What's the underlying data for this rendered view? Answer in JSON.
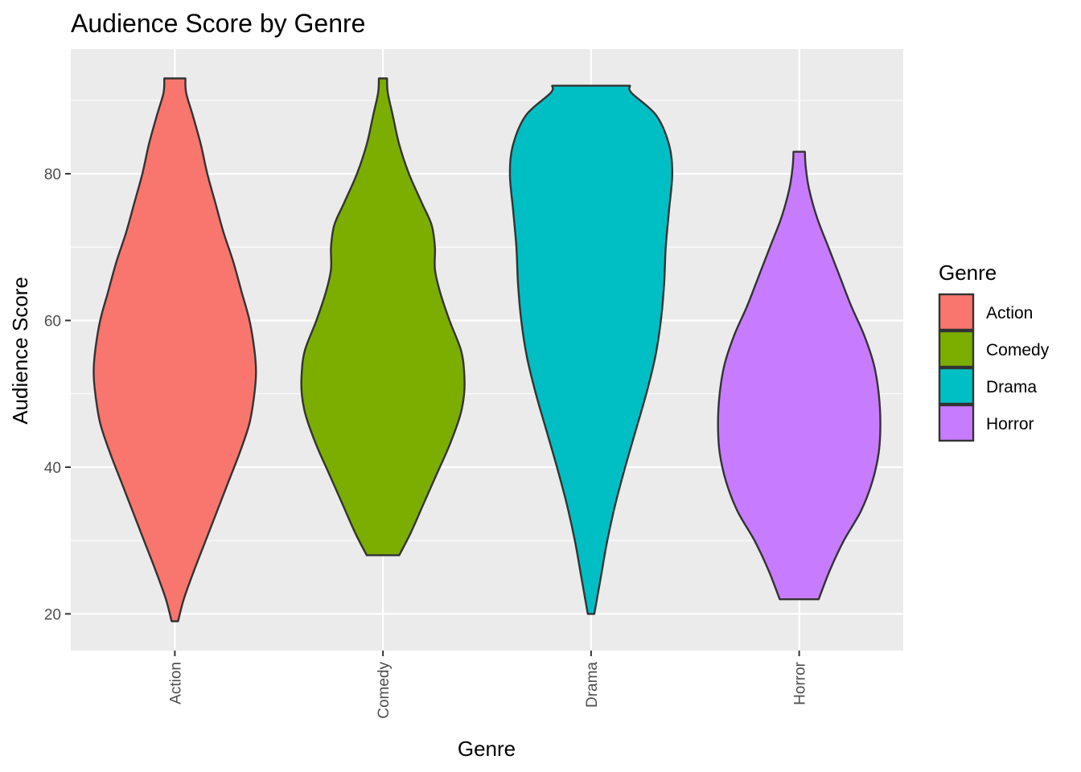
{
  "chart_data": {
    "type": "violin",
    "title": "Audience Score by Genre",
    "xlabel": "Genre",
    "ylabel": "Audience Score",
    "categories": [
      "Action",
      "Comedy",
      "Drama",
      "Horror"
    ],
    "y_ticks": [
      20,
      40,
      60,
      80
    ],
    "ylim": [
      15,
      97
    ],
    "grid": true,
    "legend": {
      "title": "Genre",
      "placement": "right",
      "entries": [
        "Action",
        "Comedy",
        "Drama",
        "Horror"
      ]
    },
    "colors": {
      "Action": "#F8766D",
      "Comedy": "#7CAE00",
      "Drama": "#00BFC4",
      "Horror": "#C77CFF",
      "panel_background": "#EBEBEB",
      "grid": "#FFFFFF",
      "outline": "#333333"
    },
    "series": [
      {
        "name": "Action",
        "min": 19,
        "max": 93,
        "density_profile": [
          [
            19,
            0.04
          ],
          [
            22,
            0.11
          ],
          [
            26,
            0.24
          ],
          [
            30,
            0.38
          ],
          [
            34,
            0.52
          ],
          [
            38,
            0.66
          ],
          [
            42,
            0.8
          ],
          [
            46,
            0.92
          ],
          [
            50,
            0.98
          ],
          [
            53,
            1.0
          ],
          [
            56,
            0.98
          ],
          [
            60,
            0.92
          ],
          [
            64,
            0.82
          ],
          [
            68,
            0.72
          ],
          [
            72,
            0.6
          ],
          [
            76,
            0.5
          ],
          [
            80,
            0.4
          ],
          [
            84,
            0.32
          ],
          [
            88,
            0.22
          ],
          [
            91,
            0.14
          ],
          [
            93,
            0.13
          ]
        ]
      },
      {
        "name": "Comedy",
        "min": 28,
        "max": 93,
        "density_profile": [
          [
            28,
            0.2
          ],
          [
            31,
            0.34
          ],
          [
            35,
            0.5
          ],
          [
            39,
            0.66
          ],
          [
            43,
            0.82
          ],
          [
            47,
            0.95
          ],
          [
            50,
            1.0
          ],
          [
            53,
            1.0
          ],
          [
            56,
            0.96
          ],
          [
            60,
            0.82
          ],
          [
            64,
            0.7
          ],
          [
            67,
            0.64
          ],
          [
            70,
            0.64
          ],
          [
            73,
            0.6
          ],
          [
            76,
            0.48
          ],
          [
            80,
            0.32
          ],
          [
            84,
            0.2
          ],
          [
            88,
            0.12
          ],
          [
            91,
            0.06
          ],
          [
            93,
            0.05
          ]
        ]
      },
      {
        "name": "Drama",
        "min": 20,
        "max": 92,
        "density_profile": [
          [
            20,
            0.04
          ],
          [
            25,
            0.12
          ],
          [
            30,
            0.2
          ],
          [
            35,
            0.3
          ],
          [
            40,
            0.42
          ],
          [
            45,
            0.55
          ],
          [
            50,
            0.68
          ],
          [
            55,
            0.79
          ],
          [
            60,
            0.86
          ],
          [
            65,
            0.9
          ],
          [
            70,
            0.92
          ],
          [
            75,
            0.96
          ],
          [
            80,
            1.0
          ],
          [
            84,
            0.96
          ],
          [
            88,
            0.8
          ],
          [
            91,
            0.5
          ],
          [
            92,
            0.48
          ]
        ]
      },
      {
        "name": "Horror",
        "min": 22,
        "max": 83,
        "density_profile": [
          [
            22,
            0.24
          ],
          [
            26,
            0.38
          ],
          [
            30,
            0.55
          ],
          [
            34,
            0.76
          ],
          [
            38,
            0.9
          ],
          [
            42,
            0.98
          ],
          [
            46,
            1.0
          ],
          [
            50,
            0.98
          ],
          [
            54,
            0.92
          ],
          [
            58,
            0.8
          ],
          [
            62,
            0.64
          ],
          [
            66,
            0.5
          ],
          [
            70,
            0.36
          ],
          [
            74,
            0.22
          ],
          [
            78,
            0.12
          ],
          [
            81,
            0.08
          ],
          [
            83,
            0.07
          ]
        ]
      }
    ]
  }
}
